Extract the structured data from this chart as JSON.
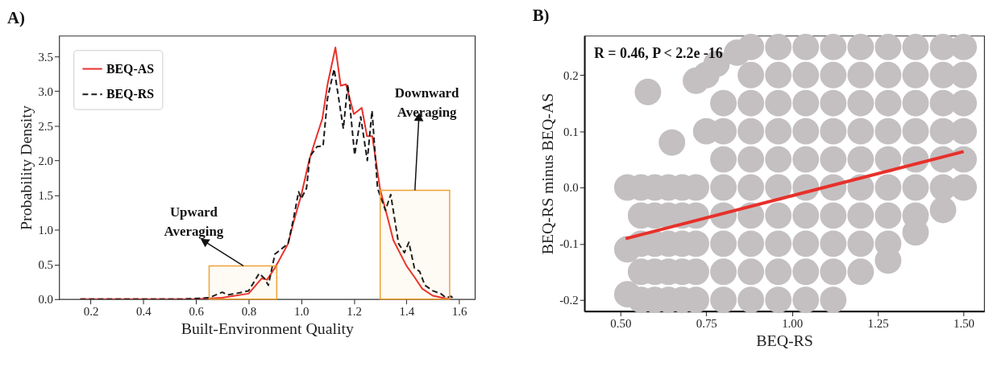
{
  "chart_data": [
    {
      "type": "line",
      "title": "A)",
      "xlabel": "Built-Environment Quality",
      "ylabel": "Probability Density",
      "xlim": [
        0.08,
        1.66
      ],
      "ylim": [
        0,
        3.8
      ],
      "xticks": [
        0.2,
        0.4,
        0.6,
        0.8,
        {
          "value": 1,
          "label": "1.0"
        },
        1.2,
        1.4,
        1.6
      ],
      "yticks": [
        {
          "value": 0,
          "label": "0.0"
        },
        0.5,
        {
          "value": 1,
          "label": "1.0"
        },
        1.5,
        {
          "value": 2,
          "label": "2.0"
        },
        2.5,
        {
          "value": 3,
          "label": "3.0"
        },
        3.5
      ],
      "grid": false,
      "legend": "top left",
      "series": [
        {
          "name": "BEQ-AS",
          "color": "#e8302a",
          "line_style": "solid",
          "x": [
            0.16,
            0.4,
            0.6,
            0.7,
            0.8,
            0.85,
            0.87,
            0.9,
            0.95,
            0.97,
            1.0,
            1.03,
            1.05,
            1.08,
            1.1,
            1.13,
            1.15,
            1.17,
            1.2,
            1.23,
            1.25,
            1.27,
            1.3,
            1.33,
            1.35,
            1.4,
            1.43,
            1.46,
            1.5,
            1.55,
            1.57
          ],
          "values": [
            0,
            0,
            0.0,
            0.02,
            0.08,
            0.3,
            0.28,
            0.45,
            0.8,
            1.1,
            1.5,
            2.0,
            2.25,
            2.6,
            3.1,
            3.63,
            3.08,
            3.1,
            2.67,
            2.76,
            2.35,
            2.35,
            1.58,
            1.15,
            0.85,
            0.48,
            0.32,
            0.15,
            0.05,
            0.01,
            0
          ]
        },
        {
          "name": "BEQ-RS",
          "color": "#1a1a1a",
          "line_style": "dashed",
          "x": [
            0.16,
            0.55,
            0.65,
            0.7,
            0.72,
            0.75,
            0.8,
            0.84,
            0.86,
            0.875,
            0.9,
            0.95,
            0.97,
            0.99,
            1.0,
            1.02,
            1.033,
            1.06,
            1.083,
            1.1,
            1.125,
            1.16,
            1.177,
            1.203,
            1.226,
            1.251,
            1.269,
            1.29,
            1.32,
            1.34,
            1.37,
            1.392,
            1.409,
            1.43,
            1.45,
            1.47,
            1.5,
            1.53,
            1.55,
            1.57,
            1.58
          ],
          "values": [
            0,
            0,
            0.02,
            0.1,
            0.06,
            0.08,
            0.12,
            0.37,
            0.3,
            0.2,
            0.65,
            0.8,
            1.15,
            1.55,
            1.45,
            1.6,
            2.06,
            2.2,
            2.21,
            2.9,
            3.32,
            2.46,
            3.1,
            2.08,
            2.63,
            2.0,
            2.72,
            1.6,
            1.28,
            1.51,
            0.8,
            0.67,
            0.82,
            0.45,
            0.4,
            0.2,
            0.12,
            0.08,
            0.02,
            0.04,
            0
          ]
        }
      ],
      "bands": [
        {
          "axis": "x",
          "from": 0.65,
          "to": 0.907,
          "color": "#f0a030"
        },
        {
          "axis": "x",
          "from": 1.3,
          "to": 1.564,
          "color": "#f0a030"
        }
      ],
      "annotations": [
        {
          "text": "Upward\nAveraging",
          "x": 0.78,
          "y": 0.48
        },
        {
          "text": "Downward\nAveraging",
          "x": 1.432,
          "y": 1.57
        }
      ]
    },
    {
      "type": "scatter",
      "title": "B)",
      "xlabel": "BEQ-RS",
      "ylabel": "BEQ-RS minus BEQ-AS",
      "xlim": [
        0.395,
        1.56
      ],
      "ylim": [
        -0.22,
        0.27
      ],
      "xticks": [
        {
          "value": 0.5,
          "label": "0.50"
        },
        0.75,
        {
          "value": 1,
          "label": "1.00"
        },
        1.25,
        {
          "value": 1.5,
          "label": "1.50"
        }
      ],
      "yticks": [
        {
          "value": -0.2,
          "label": "-0.2"
        },
        {
          "value": -0.1,
          "label": "-0.1"
        },
        {
          "value": 0,
          "label": "0.0"
        },
        0.1,
        0.2
      ],
      "grid": false,
      "annotations": [
        "R = 0.46, P < 2.2e -16"
      ],
      "series": [
        {
          "color": "#c4c0c1",
          "type": "scatter",
          "marker": "circle",
          "x": [
            0.52,
            0.52,
            0.52,
            0.58,
            0.65,
            0.72,
            0.75,
            0.75,
            0.78,
            0.84,
            0.56,
            0.56,
            0.56,
            0.56,
            0.56,
            0.6,
            0.6,
            0.6,
            0.6,
            0.6,
            0.64,
            0.64,
            0.64,
            0.64,
            0.64,
            0.68,
            0.68,
            0.68,
            0.68,
            0.68,
            0.72,
            0.72,
            0.72,
            0.72,
            0.72,
            0.8,
            0.8,
            0.8,
            0.8,
            0.8,
            0.8,
            0.8,
            0.8,
            0.88,
            0.88,
            0.88,
            0.88,
            0.88,
            0.88,
            0.88,
            0.88,
            0.88,
            0.88,
            0.96,
            0.96,
            0.96,
            0.96,
            0.96,
            0.96,
            0.96,
            0.96,
            0.96,
            0.96,
            1.04,
            1.04,
            1.04,
            1.04,
            1.04,
            1.04,
            1.04,
            1.04,
            1.04,
            1.04,
            1.12,
            1.12,
            1.12,
            1.12,
            1.12,
            1.12,
            1.12,
            1.12,
            1.12,
            1.12,
            1.2,
            1.2,
            1.2,
            1.2,
            1.2,
            1.2,
            1.2,
            1.2,
            1.2,
            1.28,
            1.28,
            1.28,
            1.28,
            1.28,
            1.28,
            1.28,
            1.28,
            1.28,
            1.36,
            1.36,
            1.36,
            1.36,
            1.36,
            1.36,
            1.36,
            1.36,
            1.44,
            1.44,
            1.44,
            1.44,
            1.44,
            1.44,
            1.44,
            1.5,
            1.5,
            1.5,
            1.5,
            1.5,
            1.5
          ],
          "values": [
            0.0,
            -0.19,
            -0.11,
            0.17,
            0.08,
            0.19,
            0.2,
            0.1,
            0.22,
            0.24,
            0,
            -0.05,
            -0.1,
            -0.15,
            -0.2,
            0,
            -0.05,
            -0.1,
            -0.15,
            -0.2,
            0,
            -0.05,
            -0.1,
            -0.15,
            -0.2,
            0,
            -0.05,
            -0.1,
            -0.15,
            -0.2,
            0,
            -0.05,
            -0.1,
            -0.15,
            -0.2,
            0.15,
            0.1,
            0.05,
            0,
            -0.05,
            -0.1,
            -0.15,
            -0.2,
            0.25,
            0.2,
            0.15,
            0.1,
            0.05,
            0,
            -0.05,
            -0.1,
            -0.15,
            -0.2,
            0.25,
            0.2,
            0.15,
            0.1,
            0.05,
            0,
            -0.05,
            -0.1,
            -0.15,
            -0.2,
            0.25,
            0.2,
            0.15,
            0.1,
            0.05,
            0,
            -0.05,
            -0.1,
            -0.15,
            -0.2,
            0.25,
            0.2,
            0.15,
            0.1,
            0.05,
            0,
            -0.05,
            -0.1,
            -0.15,
            -0.2,
            0.25,
            0.2,
            0.15,
            0.1,
            0.05,
            0,
            -0.05,
            -0.1,
            -0.15,
            0.25,
            0.2,
            0.15,
            0.1,
            0.05,
            0,
            -0.05,
            -0.1,
            -0.13,
            0.25,
            0.2,
            0.15,
            0.1,
            0.05,
            0,
            -0.05,
            -0.08,
            0.25,
            0.2,
            0.15,
            0.1,
            0.05,
            0,
            -0.04,
            0.25,
            0.2,
            0.15,
            0.1,
            0.05,
            0.0
          ]
        },
        {
          "color": "#e8302a",
          "type": "line",
          "line_style": "solid",
          "x": [
            0.515,
            1.5
          ],
          "values": [
            -0.091,
            0.064
          ]
        }
      ]
    }
  ]
}
